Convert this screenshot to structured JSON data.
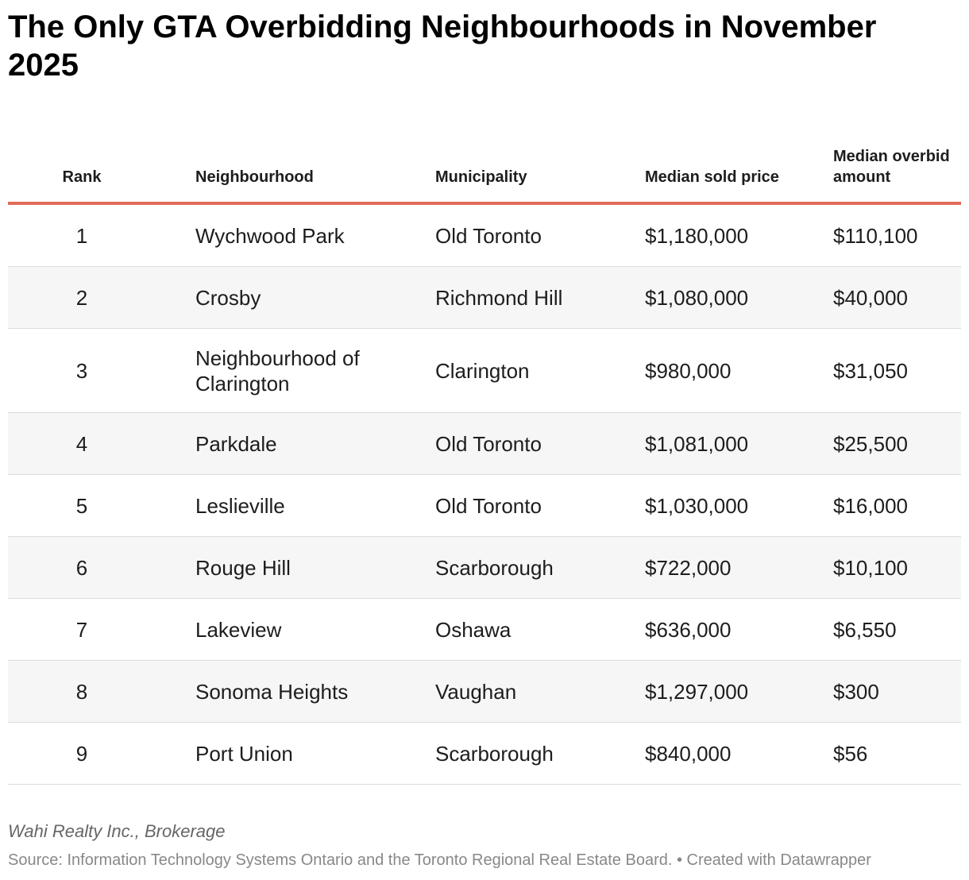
{
  "header": {
    "title": "The Only GTA Overbidding Neighbourhoods in November 2025"
  },
  "table": {
    "columns": [
      "Rank",
      "Neighbourhood",
      "Municipality",
      "Median sold price",
      "Median overbid amount"
    ],
    "rows": [
      [
        "1",
        "Wychwood Park",
        "Old Toronto",
        "$1,180,000",
        "$110,100"
      ],
      [
        "2",
        "Crosby",
        "Richmond Hill",
        "$1,080,000",
        "$40,000"
      ],
      [
        "3",
        "Neighbourhood of Clarington",
        "Clarington",
        "$980,000",
        "$31,050"
      ],
      [
        "4",
        "Parkdale",
        "Old Toronto",
        "$1,081,000",
        "$25,500"
      ],
      [
        "5",
        "Leslieville",
        "Old Toronto",
        "$1,030,000",
        "$16,000"
      ],
      [
        "6",
        "Rouge Hill",
        "Scarborough",
        "$722,000",
        "$10,100"
      ],
      [
        "7",
        "Lakeview",
        "Oshawa",
        "$636,000",
        "$6,550"
      ],
      [
        "8",
        "Sonoma Heights",
        "Vaughan",
        "$1,297,000",
        "$300"
      ],
      [
        "9",
        "Port Union",
        "Scarborough",
        "$840,000",
        "$56"
      ]
    ]
  },
  "footer": {
    "byline": "Wahi Realty Inc., Brokerage",
    "source": "Source: Information Technology Systems Ontario and the Toronto Regional Real Estate Board. • Created with Datawrapper"
  }
}
